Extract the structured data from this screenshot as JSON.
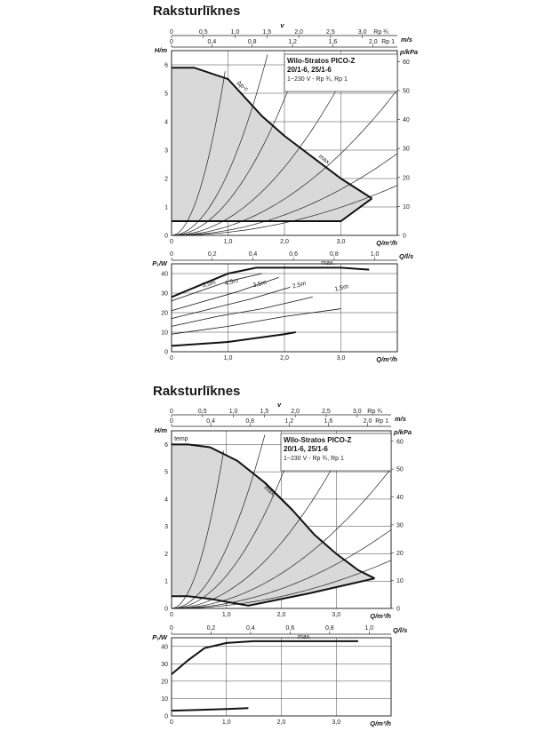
{
  "sections": [
    {
      "title": "Raksturlīknes",
      "product": {
        "name": "Wilo-Stratos PICO-Z",
        "models": "20/1-6, 25/1-6",
        "supply": "1~230 V - Rp ¾, Rp 1"
      },
      "top_axes": {
        "v_label": "v",
        "row1_unit": "Rp ¾",
        "row1_ticks": [
          "0",
          "0,5",
          "1,0",
          "1,5",
          "2,0",
          "2,5",
          "3,0"
        ],
        "ms_unit": "m/s",
        "row2_unit": "Rp 1",
        "row2_ticks": [
          "0",
          "0,4",
          "0,8",
          "1,2",
          "1,6",
          "2,0"
        ]
      },
      "chart_data": [
        {
          "type": "area",
          "title": "",
          "ylabel": "H/m",
          "ylabel_right": "p/kPa",
          "xlabel": "Q/m³/h",
          "xlim": [
            0,
            4
          ],
          "ylim": [
            0,
            6.5
          ],
          "x_ticks": [
            "0",
            "1,0",
            "2,0",
            "3,0"
          ],
          "y_ticks": [
            "0",
            "1",
            "2",
            "3",
            "4",
            "5",
            "6"
          ],
          "y2_ticks": [
            "0",
            "10",
            "20",
            "30",
            "40",
            "50",
            "60"
          ],
          "grid": true,
          "series": [
            {
              "name": "Δp-c",
              "x": [
                0,
                0.4,
                1.0,
                1.6,
                2.0
              ],
              "y": [
                5.9,
                5.9,
                5.5,
                4.2,
                3.5
              ]
            },
            {
              "name": "max.",
              "x": [
                2.0,
                2.6,
                3.0,
                3.55
              ],
              "y": [
                3.5,
                2.6,
                2.0,
                1.3
              ]
            },
            {
              "name": "",
              "x": [
                0,
                3.0,
                3.55
              ],
              "y": [
                0.5,
                0.5,
                1.3
              ]
            }
          ]
        },
        {
          "type": "line",
          "title": "",
          "ylabel": "P₁/W",
          "xlabel": "Q/m³/h",
          "x2label": "Q/l/s",
          "xlim": [
            0,
            4
          ],
          "ylim": [
            0,
            45
          ],
          "x_ticks": [
            "0",
            "1,0",
            "2,0",
            "3,0"
          ],
          "x2_ticks": [
            "0",
            "0,2",
            "0,4",
            "0,6",
            "0,8",
            "1,0"
          ],
          "y_ticks": [
            "0",
            "10",
            "20",
            "30",
            "40"
          ],
          "grid": true,
          "series": [
            {
              "name": "max.",
              "x": [
                0,
                0.5,
                1.0,
                1.5,
                2.0,
                2.5,
                3.0,
                3.5
              ],
              "y": [
                28,
                34,
                40,
                43,
                43,
                43,
                43,
                42
              ]
            },
            {
              "name": "5,5m",
              "x": [
                0,
                0.5,
                1.0,
                1.6
              ],
              "y": [
                26,
                31,
                36,
                40
              ]
            },
            {
              "name": "4,5m",
              "x": [
                0,
                0.6,
                1.2,
                1.9
              ],
              "y": [
                21,
                26,
                31,
                38
              ]
            },
            {
              "name": "3,5m",
              "x": [
                0,
                0.7,
                1.4,
                2.1
              ],
              "y": [
                17,
                22,
                27,
                33
              ]
            },
            {
              "name": "2,5m",
              "x": [
                0,
                0.8,
                1.6,
                2.5
              ],
              "y": [
                13,
                18,
                22,
                28
              ]
            },
            {
              "name": "1,5m",
              "x": [
                0,
                1.0,
                2.0,
                3.0
              ],
              "y": [
                9,
                13,
                18,
                22
              ]
            },
            {
              "name": "",
              "x": [
                0,
                1.0,
                2.0,
                2.2
              ],
              "y": [
                3,
                5,
                9,
                10
              ]
            }
          ],
          "annotations": [
            "max.",
            "5,5m",
            "4,5m",
            "3,5m",
            "2,5m",
            "1,5m"
          ]
        }
      ]
    },
    {
      "title": "Raksturlīknes",
      "product": {
        "name": "Wilo-Stratos PICO-Z",
        "models": "20/1-6, 25/1-6",
        "supply": "1~230 V - Rp ¾, Rp 1"
      },
      "top_axes": {
        "v_label": "v",
        "row1_unit": "Rp ¾",
        "row1_ticks": [
          "0",
          "0,5",
          "1,0",
          "1,5",
          "2,0",
          "2,5",
          "3,0"
        ],
        "ms_unit": "m/s",
        "row2_unit": "Rp 1",
        "row2_ticks": [
          "0",
          "0,4",
          "0,8",
          "1,2",
          "1,6",
          "2,0"
        ]
      },
      "chart_data": [
        {
          "type": "area",
          "title": "",
          "ylabel": "H/m",
          "ylabel_right": "p/kPa",
          "xlabel": "Q/m³/h",
          "xlim": [
            0,
            4
          ],
          "ylim": [
            0,
            6.5
          ],
          "x_ticks": [
            "0",
            "1,0",
            "2,0",
            "3,0"
          ],
          "y_ticks": [
            "0",
            "1",
            "2",
            "3",
            "4",
            "5",
            "6"
          ],
          "y2_ticks": [
            "0",
            "10",
            "20",
            "30",
            "40",
            "50",
            "60"
          ],
          "grid": true,
          "series": [
            {
              "name": "temp",
              "x": [
                0,
                0.3,
                0.7,
                1.2,
                1.7,
                2.2,
                2.6,
                3.0,
                3.4,
                3.7
              ],
              "y": [
                6,
                6,
                5.9,
                5.4,
                4.6,
                3.6,
                2.7,
                2.0,
                1.4,
                1.1
              ]
            },
            {
              "name": "max.",
              "x": [
                1.7,
                2.2
              ],
              "y": [
                4.6,
                3.6
              ]
            },
            {
              "name": "",
              "x": [
                0,
                0.3,
                0.7,
                1.4,
                2.5,
                3.7
              ],
              "y": [
                0.45,
                0.45,
                0.35,
                0.1,
                0.55,
                1.1
              ]
            }
          ]
        },
        {
          "type": "line",
          "title": "",
          "ylabel": "P₁/W",
          "xlabel": "Q/m³/h",
          "x2label": "Q/l/s",
          "xlim": [
            0,
            4
          ],
          "ylim": [
            0,
            45
          ],
          "x_ticks": [
            "0",
            "1,0",
            "2,0",
            "3,0"
          ],
          "x2_ticks": [
            "0",
            "0,2",
            "0,4",
            "0,6",
            "0,8",
            "1,0"
          ],
          "y_ticks": [
            "0",
            "10",
            "20",
            "30",
            "40"
          ],
          "grid": true,
          "series": [
            {
              "name": "max.",
              "x": [
                0,
                0.3,
                0.6,
                1.0,
                1.5,
                2.0,
                2.5,
                3.0,
                3.4
              ],
              "y": [
                24,
                32,
                39,
                42,
                43,
                43,
                43,
                43,
                43
              ]
            },
            {
              "name": "",
              "x": [
                0,
                0.5,
                1.0,
                1.4
              ],
              "y": [
                3,
                3.5,
                4,
                4.5
              ]
            }
          ],
          "annotations": [
            "max."
          ]
        }
      ]
    }
  ]
}
